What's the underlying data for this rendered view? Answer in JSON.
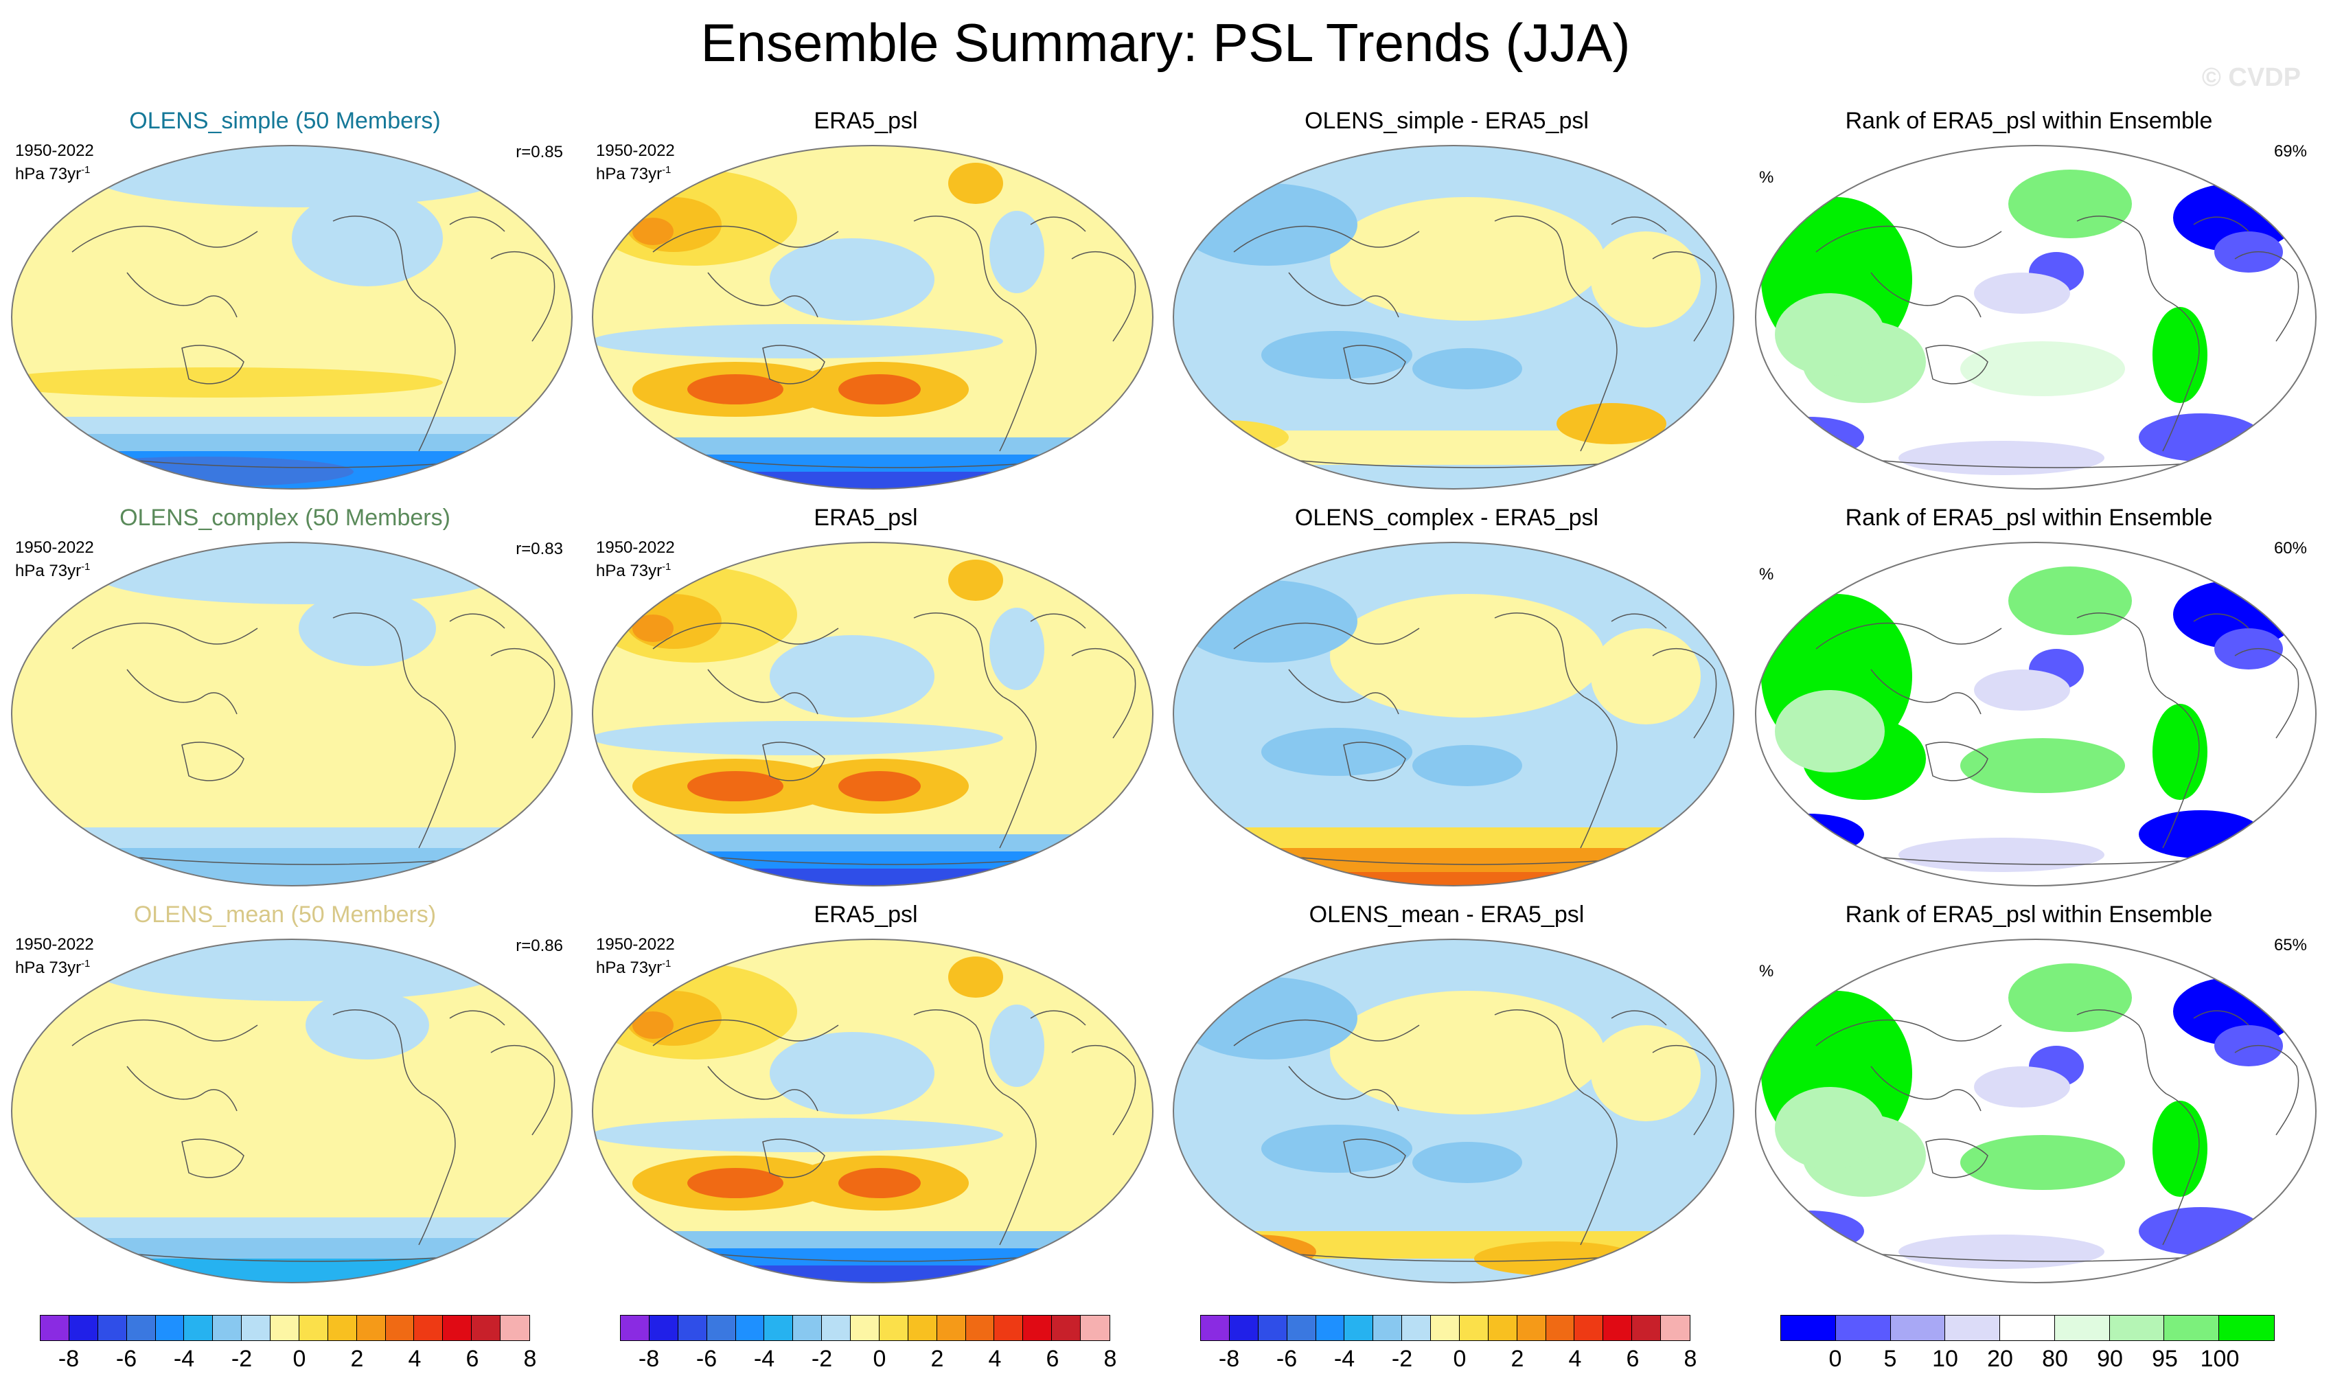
{
  "title": "Ensemble Summary: PSL Trends (JJA)",
  "watermark": "© CVDP",
  "colors": {
    "trend_scale": [
      "#8a2be2",
      "#2020e8",
      "#2f4ee8",
      "#3a78e0",
      "#1e90ff",
      "#26b2f0",
      "#88c8f0",
      "#b8dff5",
      "#fdf6a4",
      "#fbe04a",
      "#f8c020",
      "#f59a18",
      "#f06a14",
      "#ee3a14",
      "#e00a14",
      "#c8202a",
      "#f6b0b0"
    ],
    "rank_scale": [
      "#0000ff",
      "#5a5aff",
      "#a8a8f5",
      "#dcdcf8",
      "#ffffff",
      "#e0fbe0",
      "#b5f5b5",
      "#7cf07c",
      "#00f000"
    ]
  },
  "rows": [
    {
      "name": "simple",
      "panels": [
        {
          "kind": "model",
          "title": "OLENS_simple (50 Members)",
          "title_color": "#147898",
          "period": "1950-2022",
          "units": "hPa 73yr",
          "units_sup": "-1",
          "r": "r=0.85",
          "pattern": "model-simple"
        },
        {
          "kind": "obs",
          "title": "ERA5_psl",
          "period": "1950-2022",
          "units": "hPa 73yr",
          "units_sup": "-1",
          "pattern": "obs"
        },
        {
          "kind": "diff",
          "title": "OLENS_simple - ERA5_psl",
          "pattern": "diff-simple"
        },
        {
          "kind": "rank",
          "title": "Rank of ERA5_psl within Ensemble",
          "percent_symbol": "%",
          "percent": "69%",
          "pattern": "rank-simple"
        }
      ]
    },
    {
      "name": "complex",
      "panels": [
        {
          "kind": "model",
          "title": "OLENS_complex (50 Members)",
          "title_color": "#5a8a5a",
          "period": "1950-2022",
          "units": "hPa 73yr",
          "units_sup": "-1",
          "r": "r=0.83",
          "pattern": "model-complex"
        },
        {
          "kind": "obs",
          "title": "ERA5_psl",
          "period": "1950-2022",
          "units": "hPa 73yr",
          "units_sup": "-1",
          "pattern": "obs"
        },
        {
          "kind": "diff",
          "title": "OLENS_complex - ERA5_psl",
          "pattern": "diff-complex"
        },
        {
          "kind": "rank",
          "title": "Rank of ERA5_psl within Ensemble",
          "percent_symbol": "%",
          "percent": "60%",
          "pattern": "rank-complex"
        }
      ]
    },
    {
      "name": "mean",
      "panels": [
        {
          "kind": "model",
          "title": "OLENS_mean (50 Members)",
          "title_color": "#d8c888",
          "period": "1950-2022",
          "units": "hPa 73yr",
          "units_sup": "-1",
          "r": "r=0.86",
          "pattern": "model-mean"
        },
        {
          "kind": "obs",
          "title": "ERA5_psl",
          "period": "1950-2022",
          "units": "hPa 73yr",
          "units_sup": "-1",
          "pattern": "obs"
        },
        {
          "kind": "diff",
          "title": "OLENS_mean - ERA5_psl",
          "pattern": "diff-mean"
        },
        {
          "kind": "rank",
          "title": "Rank of ERA5_psl within Ensemble",
          "percent_symbol": "%",
          "percent": "65%",
          "pattern": "rank-mean"
        }
      ]
    }
  ],
  "colorbars": [
    {
      "kind": "trend",
      "labels": [
        "-8",
        "-6",
        "-4",
        "-2",
        "0",
        "2",
        "4",
        "6",
        "8"
      ]
    },
    {
      "kind": "trend",
      "labels": [
        "-8",
        "-6",
        "-4",
        "-2",
        "0",
        "2",
        "4",
        "6",
        "8"
      ]
    },
    {
      "kind": "trend",
      "labels": [
        "-8",
        "-6",
        "-4",
        "-2",
        "0",
        "2",
        "4",
        "6",
        "8"
      ]
    },
    {
      "kind": "rank",
      "labels": [
        "0",
        "5",
        "10",
        "20",
        "80",
        "90",
        "95",
        "100"
      ]
    }
  ]
}
